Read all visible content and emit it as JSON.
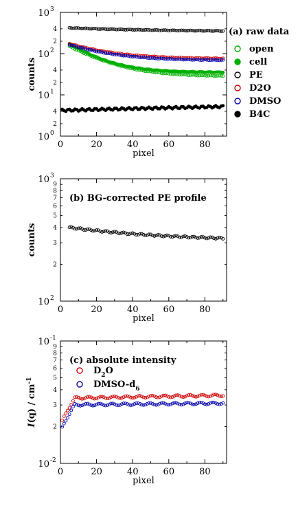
{
  "chart_data": [
    {
      "id": "a",
      "type": "scatter",
      "annotation": "(a) raw data",
      "xlabel": "pixel",
      "ylabel": "counts",
      "xlim": [
        0,
        92
      ],
      "ylim": [
        1,
        1000
      ],
      "yscale": "log",
      "x_ticks": [
        "0",
        "20",
        "40",
        "60",
        "80"
      ],
      "y_major_ticks": [
        {
          "base": "10",
          "exp": "0"
        },
        {
          "base": "10",
          "exp": "1"
        },
        {
          "base": "10",
          "exp": "2"
        },
        {
          "base": "10",
          "exp": "3"
        }
      ],
      "y_minor_labels": [
        "2",
        "4",
        "2",
        "4",
        "2",
        "4"
      ],
      "series": [
        {
          "name": "open",
          "color": "#00b000",
          "filled": false,
          "y_start": 150,
          "y_end": 28,
          "decay": 0.06
        },
        {
          "name": "cell",
          "color": "#00b000",
          "filled": true,
          "y_start": 170,
          "y_end": 35,
          "decay": 0.07
        },
        {
          "name": "PE",
          "color": "#000000",
          "filled": false,
          "y_start": 420,
          "y_end": 340,
          "decay": 0.02
        },
        {
          "name": "D2O",
          "color": "#cc0000",
          "filled": false,
          "y_start": 175,
          "y_end": 75,
          "decay": 0.05
        },
        {
          "name": "DMSO",
          "color": "#0000aa",
          "filled": false,
          "y_start": 165,
          "y_end": 68,
          "decay": 0.05
        },
        {
          "name": "B4C",
          "color": "#000000",
          "filled": true,
          "y_start": 4.2,
          "y_end": 5.2,
          "decay": 0.0
        }
      ]
    },
    {
      "id": "b",
      "type": "scatter",
      "annotation": "(b) BG-corrected PE profile",
      "xlabel": "pixel",
      "ylabel": "counts",
      "xlim": [
        0,
        92
      ],
      "ylim": [
        100,
        1000
      ],
      "yscale": "log",
      "x_ticks": [
        "0",
        "20",
        "40",
        "60",
        "80"
      ],
      "y_major_ticks": [
        {
          "base": "10",
          "exp": "2"
        },
        {
          "base": "10",
          "exp": "3"
        }
      ],
      "y_minor_labels": [
        "2",
        "3",
        "4",
        "5",
        "6",
        "7",
        "8",
        "9"
      ],
      "series": [
        {
          "name": "PE",
          "color": "#000000",
          "filled": false,
          "y_start": 400,
          "y_end": 310,
          "decay": 0.02
        }
      ]
    },
    {
      "id": "c",
      "type": "scatter",
      "annotation": "(c) absolute intensity",
      "xlabel": "pixel",
      "ylabel": "I(q) / cm-1",
      "xlim": [
        0,
        92
      ],
      "ylim": [
        0.01,
        0.1
      ],
      "yscale": "log",
      "x_ticks": [
        "0",
        "20",
        "40",
        "60",
        "80"
      ],
      "y_major_ticks": [
        {
          "base": "10",
          "exp": "-2"
        },
        {
          "base": "10",
          "exp": "-1"
        }
      ],
      "y_minor_labels": [
        "2",
        "3",
        "4",
        "5",
        "6",
        "7",
        "8",
        "9"
      ],
      "series": [
        {
          "name": "D2O",
          "legend": "D2O",
          "color": "#cc0000",
          "filled": false,
          "y_start": 0.034,
          "y_end": 0.036,
          "decay": 0.0
        },
        {
          "name": "DMSO-d6",
          "legend": "DMSO-d6",
          "color": "#0000aa",
          "filled": false,
          "y_start": 0.03,
          "y_end": 0.031,
          "decay": 0.0
        }
      ]
    }
  ]
}
